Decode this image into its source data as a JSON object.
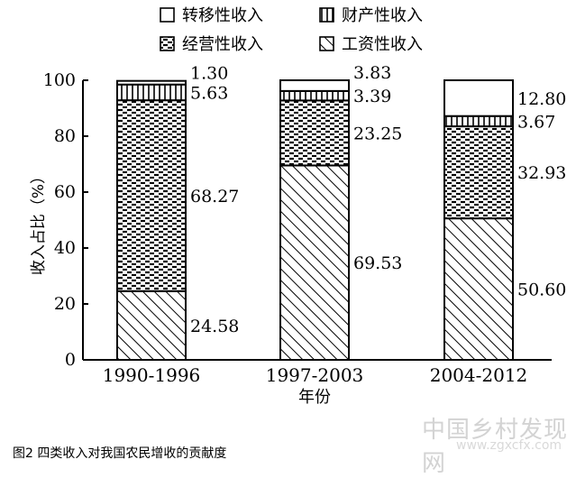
{
  "chart_data": {
    "type": "bar",
    "stacked": true,
    "categories": [
      "1990-1996",
      "1997-2003",
      "2004-2012"
    ],
    "series": [
      {
        "name": "工资性收入",
        "pattern": "diagonal-hatch",
        "values": [
          24.58,
          69.53,
          50.6
        ]
      },
      {
        "name": "经营性收入",
        "pattern": "dashes",
        "values": [
          68.27,
          23.25,
          32.93
        ]
      },
      {
        "name": "财产性收入",
        "pattern": "vertical-lines",
        "values": [
          5.63,
          3.39,
          3.67
        ]
      },
      {
        "name": "转移性收入",
        "pattern": "blank",
        "values": [
          1.3,
          3.83,
          12.8
        ]
      }
    ],
    "data_labels": [
      [
        "24.58",
        "68.27",
        "5.63",
        "1.30"
      ],
      [
        "69.53",
        "23.25",
        "3.39",
        "3.83"
      ],
      [
        "50.60",
        "32.93",
        "3.67",
        "12.80"
      ]
    ],
    "legend": {
      "placement": "top",
      "order": [
        "转移性收入",
        "财产性收入",
        "经营性收入",
        "工资性收入"
      ]
    },
    "xlabel": "年份",
    "ylabel": "收入占比（%）",
    "ylim": [
      0,
      100
    ],
    "yticks": [
      0,
      20,
      40,
      60,
      80,
      100
    ],
    "grid": false,
    "caption": "图2 四类收入对我国农民增收的贡献度"
  },
  "watermark": {
    "text": "中国乡村发现网",
    "url": "www.zgxcfx.com"
  }
}
